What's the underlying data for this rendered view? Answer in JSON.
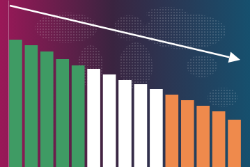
{
  "chart_data": {
    "type": "bar",
    "categories": [
      null,
      null,
      null,
      null,
      null,
      null,
      null,
      null,
      null,
      null,
      null,
      null,
      null,
      null,
      null
    ],
    "values": [
      183,
      175,
      166,
      155,
      146,
      141,
      133,
      125,
      119,
      112,
      104,
      96,
      88,
      80,
      68
    ],
    "colors": [
      "#3f9b64",
      "#3f9b64",
      "#3f9b64",
      "#3f9b64",
      "#3f9b64",
      "#ffffff",
      "#ffffff",
      "#ffffff",
      "#ffffff",
      "#ffffff",
      "#ef8a4c",
      "#ef8a4c",
      "#ef8a4c",
      "#ef8a4c",
      "#ef8a4c"
    ],
    "ylim": [
      0,
      240
    ],
    "grid": false,
    "tick_labels": false
  }
}
